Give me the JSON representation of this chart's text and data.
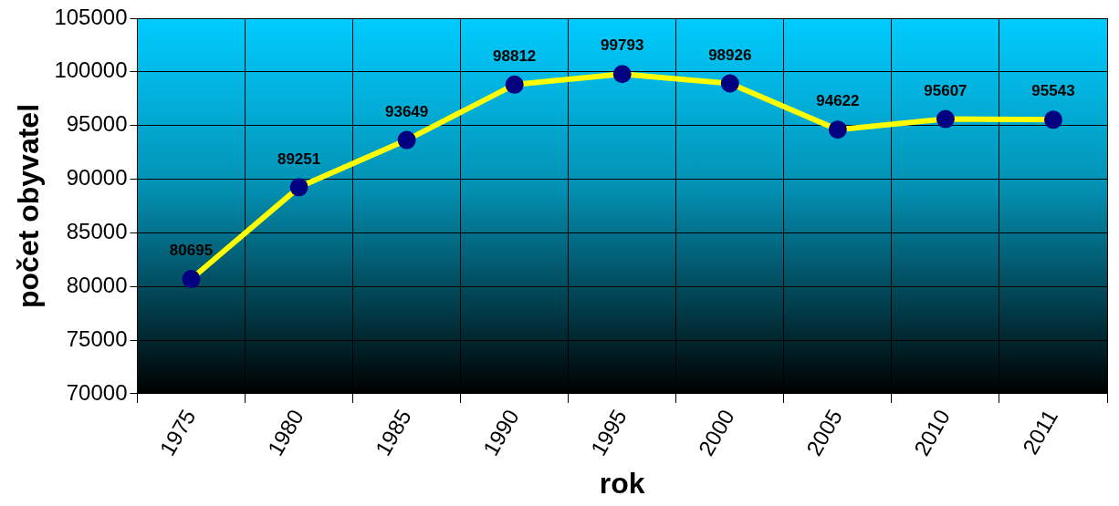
{
  "chart_data": {
    "type": "line",
    "xlabel": "rok",
    "ylabel": "počet obyvatel",
    "categories": [
      "1975",
      "1980",
      "1985",
      "1990",
      "1995",
      "2000",
      "2005",
      "2010",
      "2011"
    ],
    "series": [
      {
        "color": "#ffff00",
        "values": [
          80695,
          89251,
          93649,
          98812,
          99793,
          98926,
          94622,
          95607,
          95543
        ]
      }
    ],
    "ylim": [
      70000,
      105000
    ],
    "yticks": [
      70000,
      75000,
      80000,
      85000,
      90000,
      95000,
      100000,
      105000
    ],
    "grid": true,
    "legend": false,
    "marker": "circle",
    "line_style": "solid",
    "data_labels": true
  }
}
